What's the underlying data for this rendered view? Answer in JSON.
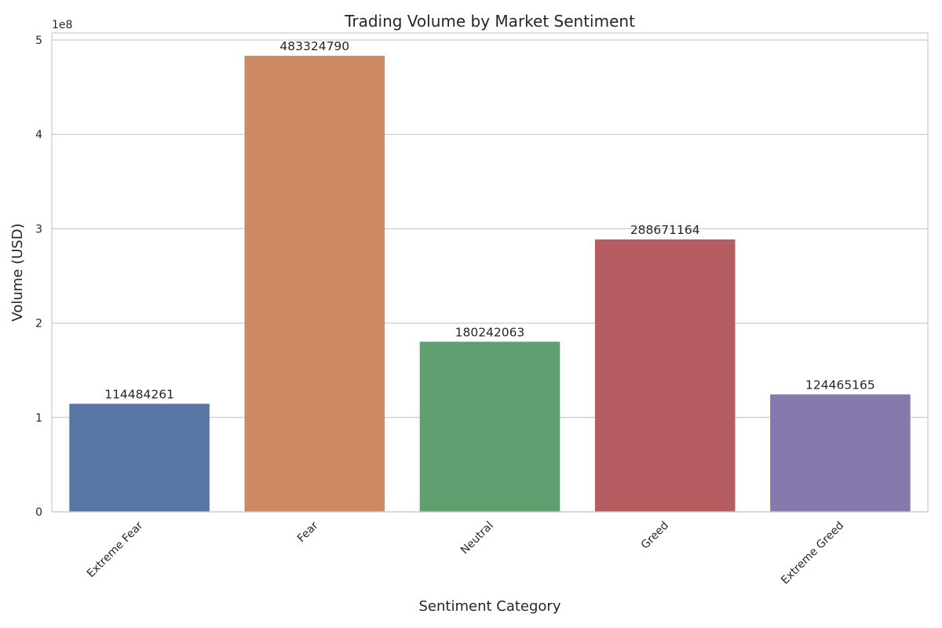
{
  "chart_data": {
    "type": "bar",
    "title": "Trading Volume by Market Sentiment",
    "xlabel": "Sentiment Category",
    "ylabel": "Volume (USD)",
    "y_offset_label": "1e8",
    "categories": [
      "Extreme Fear",
      "Fear",
      "Neutral",
      "Greed",
      "Extreme Greed"
    ],
    "values": [
      114484261,
      483324790,
      180242063,
      288671164,
      124465165
    ],
    "data_labels": [
      "114484261",
      "483324790",
      "180242063",
      "288671164",
      "124465165"
    ],
    "colors": [
      "#5975a4",
      "#cc8963",
      "#5f9e6e",
      "#b55d60",
      "#857aab"
    ],
    "ylim": [
      0,
      507491030
    ],
    "y_ticks": [
      0,
      100000000,
      200000000,
      300000000,
      400000000,
      500000000
    ],
    "y_tick_labels": [
      "0",
      "1",
      "2",
      "3",
      "4",
      "5"
    ],
    "grid": true,
    "x_tick_rotation_deg": 45
  }
}
